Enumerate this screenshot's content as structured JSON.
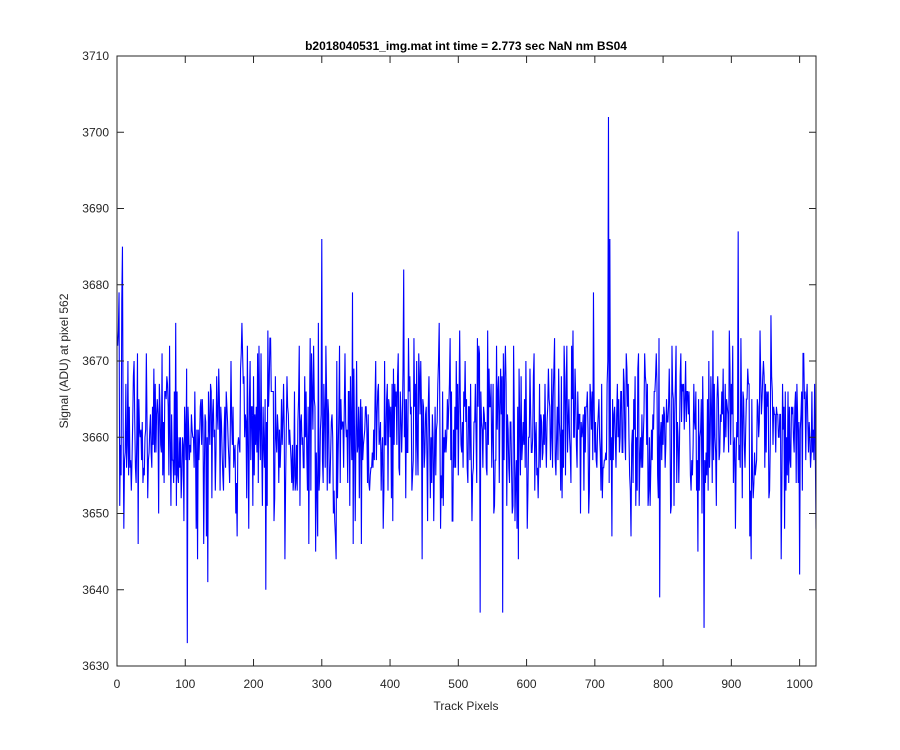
{
  "chart_data": {
    "type": "line",
    "title": "b2018040531_img.mat int time = 2.773 sec  NaN nm BS04",
    "xlabel": "Track Pixels",
    "ylabel": "Signal (ADU) at pixel 562",
    "xlim": [
      0,
      1024
    ],
    "ylim": [
      3630,
      3710
    ],
    "xticks": [
      0,
      100,
      200,
      300,
      400,
      500,
      600,
      700,
      800,
      900,
      1000
    ],
    "yticks": [
      3630,
      3640,
      3650,
      3660,
      3670,
      3680,
      3690,
      3700,
      3710
    ],
    "grid": false,
    "legend": "none",
    "series": [
      {
        "color": "#0000ff",
        "x_start": 1,
        "x_step": 1,
        "noise_model": {
          "points": 1024,
          "mean": 3661,
          "std": 6.2,
          "min": 3633,
          "max": 3702
        },
        "notable_points": [
          {
            "x": 3,
            "y": 3679
          },
          {
            "x": 8,
            "y": 3685
          },
          {
            "x": 10,
            "y": 3648
          },
          {
            "x": 103,
            "y": 3633
          },
          {
            "x": 118,
            "y": 3644
          },
          {
            "x": 133,
            "y": 3641
          },
          {
            "x": 218,
            "y": 3640
          },
          {
            "x": 300,
            "y": 3686
          },
          {
            "x": 420,
            "y": 3682
          },
          {
            "x": 532,
            "y": 3637
          },
          {
            "x": 565,
            "y": 3637
          },
          {
            "x": 720,
            "y": 3702
          },
          {
            "x": 722,
            "y": 3686
          },
          {
            "x": 795,
            "y": 3639
          },
          {
            "x": 860,
            "y": 3635
          },
          {
            "x": 910,
            "y": 3687
          },
          {
            "x": 1000,
            "y": 3642
          }
        ]
      }
    ]
  }
}
